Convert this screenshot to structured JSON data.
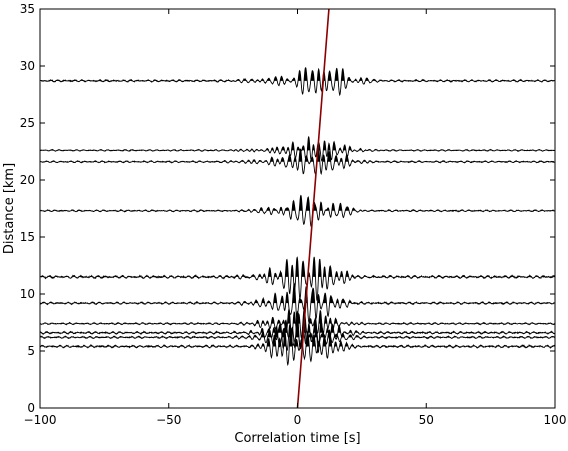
{
  "chart_data": {
    "type": "line",
    "title": "",
    "xlabel": "Correlation time [s]",
    "ylabel": "Distance [km]",
    "xlim": [
      -100,
      100
    ],
    "ylim": [
      0,
      35
    ],
    "xticks": [
      -100,
      -50,
      0,
      50,
      100
    ],
    "yticks": [
      0,
      5,
      10,
      15,
      20,
      25,
      30,
      35
    ],
    "xtick_labels": [
      "−100",
      "−50",
      "0",
      "50",
      "100"
    ],
    "ytick_labels": [
      "0",
      "5",
      "10",
      "15",
      "20",
      "25",
      "30",
      "35"
    ],
    "grid": false,
    "legend": "none",
    "trace_color": "#000000",
    "moveout_color": "#8b0000",
    "moveout_line": {
      "x": [
        0,
        12.2
      ],
      "y": [
        0,
        35
      ]
    },
    "series": [
      {
        "offset": 28.7,
        "lag": 9.7,
        "amplitude": 1.5
      },
      {
        "offset": 22.6,
        "lag": 7.8,
        "amplitude": 1.1
      },
      {
        "offset": 21.6,
        "lag": 7.5,
        "amplitude": 1.3
      },
      {
        "offset": 17.3,
        "lag": 6.0,
        "amplitude": 1.3
      },
      {
        "offset": 11.5,
        "lag": 4.0,
        "amplitude": 2.0
      },
      {
        "offset": 9.2,
        "lag": 3.2,
        "amplitude": 1.6
      },
      {
        "offset": 7.4,
        "lag": 2.6,
        "amplitude": 1.3
      },
      {
        "offset": 6.6,
        "lag": 2.3,
        "amplitude": 1.7
      },
      {
        "offset": 6.2,
        "lag": 2.2,
        "amplitude": 1.5
      },
      {
        "offset": 5.4,
        "lag": 1.9,
        "amplitude": 1.8
      }
    ]
  }
}
